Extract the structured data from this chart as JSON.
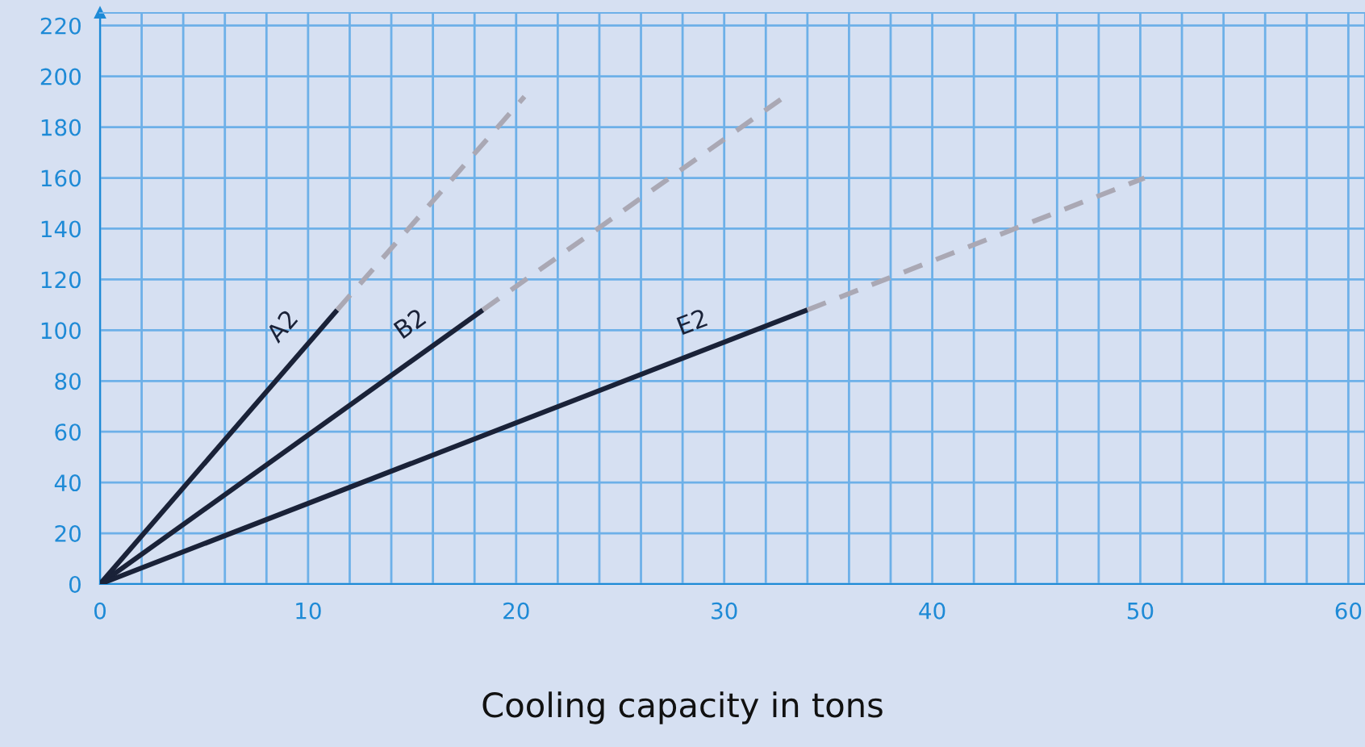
{
  "chart_data": {
    "type": "line",
    "xlabel": "Cooling capacity in tons",
    "series": [
      {
        "name": "A2",
        "color": "#1a2238",
        "line_style": "solid",
        "x": [
          0,
          11.4
        ],
        "values": [
          0,
          108
        ]
      },
      {
        "color": "#aaa8b4",
        "line_style": "dashed",
        "x": [
          11.4,
          20.4
        ],
        "values": [
          108,
          192
        ]
      },
      {
        "name": "B2",
        "color": "#1a2238",
        "line_style": "solid",
        "x": [
          0,
          18.4
        ],
        "values": [
          0,
          108
        ]
      },
      {
        "color": "#aaa8b4",
        "line_style": "dashed",
        "x": [
          18.4,
          32.9
        ],
        "values": [
          108,
          192
        ]
      },
      {
        "name": "E2",
        "color": "#1a2238",
        "line_style": "solid",
        "x": [
          0,
          34
        ],
        "values": [
          0,
          108
        ]
      },
      {
        "color": "#aaa8b4",
        "line_style": "dashed",
        "x": [
          34,
          50.2
        ],
        "values": [
          108,
          160
        ]
      }
    ],
    "xlim": [
      0,
      60.8
    ],
    "ylim": [
      0,
      225
    ],
    "xticks": [
      0,
      {
        "value": 2,
        "label": null
      },
      {
        "value": 4,
        "label": null
      },
      {
        "value": 6,
        "label": null
      },
      {
        "value": 8,
        "label": null
      },
      10,
      {
        "value": 12,
        "label": null
      },
      {
        "value": 14,
        "label": null
      },
      {
        "value": 16,
        "label": null
      },
      {
        "value": 18,
        "label": null
      },
      20,
      {
        "value": 22,
        "label": null
      },
      {
        "value": 24,
        "label": null
      },
      {
        "value": 26,
        "label": null
      },
      {
        "value": 28,
        "label": null
      },
      30,
      {
        "value": 32,
        "label": null
      },
      {
        "value": 34,
        "label": null
      },
      {
        "value": 36,
        "label": null
      },
      {
        "value": 38,
        "label": null
      },
      40,
      {
        "value": 42,
        "label": null
      },
      {
        "value": 44,
        "label": null
      },
      {
        "value": 46,
        "label": null
      },
      {
        "value": 48,
        "label": null
      },
      50,
      {
        "value": 52,
        "label": null
      },
      {
        "value": 54,
        "label": null
      },
      {
        "value": 56,
        "label": null
      },
      {
        "value": 58,
        "label": null
      },
      60
    ],
    "yticks": [
      0,
      20,
      40,
      60,
      80,
      100,
      120,
      140,
      160,
      180,
      200,
      220
    ],
    "grid": true,
    "legend": false,
    "marker": "none"
  }
}
